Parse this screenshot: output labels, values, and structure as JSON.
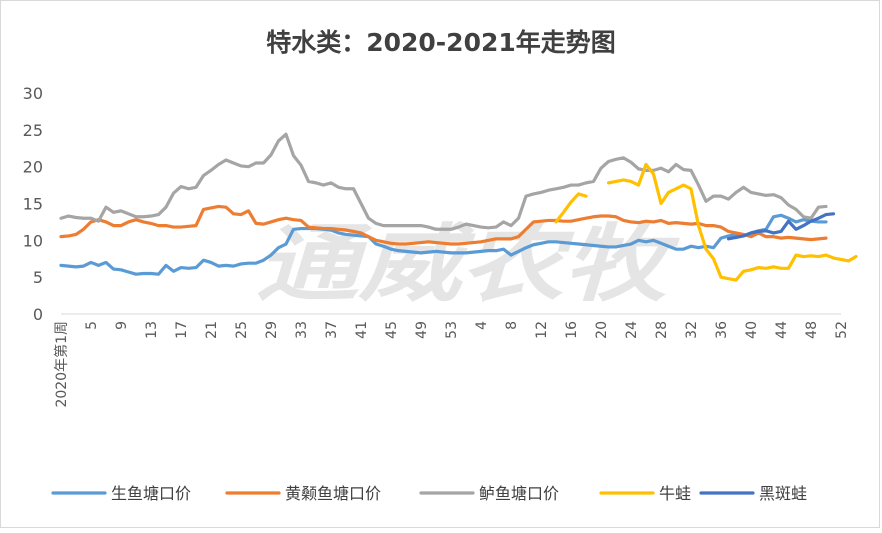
{
  "chart_data": {
    "type": "line",
    "title": "特水类：2020-2021年走势图",
    "watermark": "通威农牧",
    "ylim": [
      0,
      30
    ],
    "yticks": [
      0,
      5,
      10,
      15,
      20,
      25,
      30
    ],
    "xtick_labels": [
      "2020年第1周",
      "5",
      "9",
      "13",
      "17",
      "21",
      "25",
      "29",
      "33",
      "37",
      "41",
      "45",
      "49",
      "53",
      "4",
      "8",
      "12",
      "16",
      "20",
      "24",
      "28",
      "32",
      "36",
      "40",
      "44",
      "48",
      "52"
    ],
    "grid": false,
    "legend_position": "bottom",
    "series": [
      {
        "name": "生鱼塘口价",
        "color": "#5b9bd5",
        "start": 0,
        "values": [
          6.6,
          6.5,
          6.4,
          6.5,
          7.0,
          6.6,
          7.0,
          6.1,
          6.0,
          5.7,
          5.4,
          5.5,
          5.5,
          5.4,
          6.6,
          5.8,
          6.3,
          6.2,
          6.3,
          7.3,
          7.0,
          6.5,
          6.6,
          6.5,
          6.8,
          6.9,
          6.9,
          7.3,
          8.0,
          9.0,
          9.5,
          11.5,
          11.6,
          11.6,
          11.6,
          11.5,
          11.4,
          11.0,
          10.8,
          10.7,
          10.6,
          10.5,
          9.5,
          9.2,
          8.8,
          8.6,
          8.5,
          8.4,
          8.3,
          8.4,
          8.5,
          8.4,
          8.3,
          8.3,
          8.3,
          8.4,
          8.5,
          8.6,
          8.6,
          8.8,
          8.0,
          8.5,
          9.0,
          9.4,
          9.6,
          9.8,
          9.8,
          9.7,
          9.6,
          9.5,
          9.4,
          9.3,
          9.2,
          9.1,
          9.1,
          9.3,
          9.5,
          10.0,
          9.8,
          10.0,
          9.6,
          9.2,
          8.8,
          8.8,
          9.2,
          9.0,
          9.2,
          9.0,
          10.3,
          10.6,
          10.8,
          10.6,
          11.0,
          11.3,
          11.5,
          13.2,
          13.4,
          13.0,
          12.5,
          12.8,
          12.6,
          12.5,
          12.5
        ]
      },
      {
        "name": "黄颡鱼塘口价",
        "color": "#ed7d31",
        "start": 0,
        "values": [
          10.5,
          10.6,
          10.8,
          11.5,
          12.5,
          12.8,
          12.5,
          12.0,
          12.0,
          12.5,
          12.8,
          12.5,
          12.3,
          12.0,
          12.0,
          11.8,
          11.8,
          11.9,
          12.0,
          14.2,
          14.4,
          14.6,
          14.5,
          13.6,
          13.5,
          14.0,
          12.3,
          12.2,
          12.5,
          12.8,
          13.0,
          12.8,
          12.7,
          11.8,
          11.7,
          11.6,
          11.6,
          11.5,
          11.4,
          11.2,
          11.0,
          10.5,
          10.0,
          9.8,
          9.6,
          9.5,
          9.5,
          9.6,
          9.7,
          9.8,
          9.7,
          9.6,
          9.5,
          9.5,
          9.6,
          9.7,
          9.8,
          10.0,
          10.2,
          10.2,
          10.2,
          10.5,
          11.5,
          12.5,
          12.6,
          12.7,
          12.7,
          12.6,
          12.6,
          12.8,
          13.0,
          13.2,
          13.3,
          13.3,
          13.2,
          12.7,
          12.5,
          12.4,
          12.6,
          12.5,
          12.7,
          12.3,
          12.4,
          12.3,
          12.2,
          12.3,
          12.0,
          12.0,
          11.8,
          11.2,
          11.0,
          10.8,
          10.5,
          11.0,
          10.5,
          10.5,
          10.3,
          10.4,
          10.3,
          10.2,
          10.1,
          10.2,
          10.3
        ]
      },
      {
        "name": "鲈鱼塘口价",
        "color": "#a5a5a5",
        "start": 0,
        "values": [
          13.0,
          13.3,
          13.1,
          13.0,
          13.0,
          12.6,
          14.5,
          13.8,
          14.0,
          13.6,
          13.2,
          13.2,
          13.3,
          13.5,
          14.5,
          16.4,
          17.3,
          17.0,
          17.2,
          18.8,
          19.5,
          20.3,
          20.9,
          20.5,
          20.1,
          20.0,
          20.5,
          20.5,
          21.6,
          23.5,
          24.4,
          21.5,
          20.2,
          18.0,
          17.8,
          17.5,
          17.8,
          17.2,
          17.0,
          17.0,
          15.0,
          13.0,
          12.3,
          12.0,
          12.0,
          12.0,
          12.0,
          12.0,
          12.0,
          11.8,
          11.5,
          11.5,
          11.5,
          11.8,
          12.2,
          12.0,
          11.8,
          11.7,
          11.8,
          12.5,
          12.0,
          13.0,
          16.0,
          16.3,
          16.5,
          16.8,
          17.0,
          17.2,
          17.5,
          17.5,
          17.8,
          18.0,
          19.8,
          20.7,
          21.0,
          21.2,
          20.6,
          19.7,
          19.5,
          19.5,
          19.8,
          19.3,
          20.3,
          19.6,
          19.5,
          17.5,
          15.3,
          16.0,
          16.0,
          15.6,
          16.5,
          17.2,
          16.5,
          16.3,
          16.1,
          16.2,
          15.8,
          14.8,
          14.2,
          13.2,
          13.0,
          14.5,
          14.6
        ]
      },
      {
        "name": "牛蛙",
        "color": "#ffc000",
        "start": 66,
        "values": [
          12.5,
          13.8,
          15.2,
          16.3,
          16.0,
          null,
          null,
          17.8,
          18.0,
          18.2,
          18.0,
          17.5,
          20.3,
          19.0,
          15.0,
          16.5,
          17.0,
          17.5,
          17.0,
          12.0,
          8.8,
          7.5,
          5.0,
          4.8,
          4.6,
          5.8,
          6.0,
          6.3,
          6.2,
          6.4,
          6.2,
          6.2,
          8.0,
          7.8,
          7.9,
          7.8,
          8.0,
          7.6,
          7.4,
          7.2,
          7.8
        ]
      },
      {
        "name": "黑斑蛙",
        "color": "#4472c4",
        "start": 89,
        "values": [
          10.2,
          10.4,
          10.6,
          11.0,
          11.2,
          11.3,
          11.0,
          11.2,
          12.6,
          11.5,
          12.0,
          12.6,
          13.0,
          13.5,
          13.6
        ]
      }
    ]
  }
}
